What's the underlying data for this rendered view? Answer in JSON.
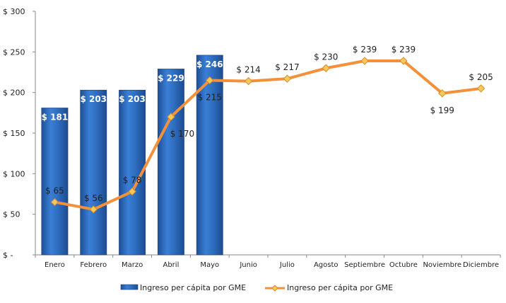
{
  "chart_data": {
    "type": "bar+line",
    "categories": [
      "Enero",
      "Febrero",
      "Marzo",
      "Abril",
      "Mayo",
      "Junio",
      "Julio",
      "Agosto",
      "Septiembre",
      "Octubre",
      "Noviembre",
      "Diciembre"
    ],
    "y_ticks": [
      "$ -",
      "$ 50",
      "$ 100",
      "$ 150",
      "$ 200",
      "$ 250",
      "$ 300"
    ],
    "ylim": [
      0,
      300
    ],
    "series": [
      {
        "name": "Ingreso per cápita por GME",
        "type": "bar",
        "color": "#2F6FC1",
        "values": [
          181,
          203,
          203,
          229,
          246,
          null,
          null,
          null,
          null,
          null,
          null,
          null
        ],
        "labels": [
          "$ 181",
          "$ 203",
          "$ 203",
          "$ 229",
          "$ 246"
        ]
      },
      {
        "name": "Ingreso per cápita por GME",
        "type": "line",
        "color": "#F5903A",
        "values": [
          65,
          56,
          78,
          170,
          215,
          214,
          217,
          230,
          239,
          239,
          199,
          205
        ],
        "labels": [
          "$ 65",
          "$ 56",
          "$ 78",
          "$ 170",
          "$ 215",
          "$ 214",
          "$ 217",
          "$ 230",
          "$ 239",
          "$ 239",
          "$ 199",
          "$ 205"
        ]
      }
    ],
    "legend_position": "bottom",
    "grid": false
  }
}
